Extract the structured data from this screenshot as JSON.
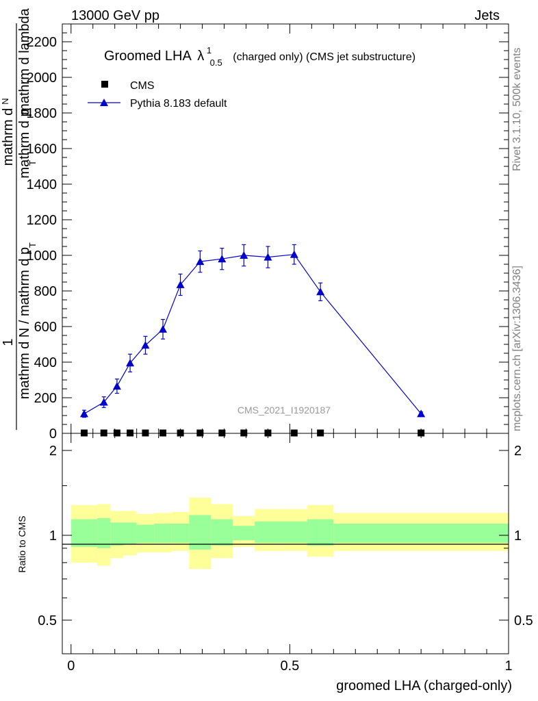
{
  "header": {
    "left_label": "13000 GeV pp",
    "right_label": "Jets"
  },
  "side_labels": {
    "rivet": "Rivet 3.1.10,  500k events",
    "mcplots": "mcplots.cern.ch [arXiv:1306.3436]"
  },
  "watermark": "CMS_2021_I1920187",
  "chart_data": {
    "type": "line",
    "title_main": "Groomed LHA",
    "title_lambda": "λ",
    "title_sup": "1",
    "title_sub": "0.5",
    "title_rest": "(charged only) (CMS jet substructure)",
    "ylabel_numerator": "1",
    "ylabel_numerator_upper": "mathrm d",
    "ylabel_numerator_N": "N",
    "ylabel_denominator": "mathrm d N / mathrm d p",
    "ylabel_denominator_upper": "mathrm d p",
    "ylabel_T": "T",
    "ylabel_tail": "mathrm d lambda",
    "ylabel_tail_full": "mathrm d p_T mathrm d lambda",
    "xlabel": "groomed LHA (charged-only)",
    "ratio_ylabel": "Ratio to CMS",
    "main_ylim": [
      0,
      2300
    ],
    "main_yticks": [
      0,
      200,
      400,
      600,
      800,
      1000,
      1200,
      1400,
      1600,
      1800,
      2000,
      2200
    ],
    "main_ytick_labels": [
      "0",
      "200",
      "400",
      "600",
      "800",
      "1000",
      "1200",
      "1400",
      "1600",
      "1800",
      "2000",
      "2200"
    ],
    "xlim": [
      -0.02,
      1.0
    ],
    "xticks": [
      0,
      0.5,
      1
    ],
    "xtick_labels": [
      "0",
      "0.5",
      "1"
    ],
    "ratio_ylim": [
      0.38,
      2.3
    ],
    "ratio_yticks": [
      0.5,
      1,
      2
    ],
    "ratio_ytick_labels": [
      "0.5",
      "1",
      "2"
    ],
    "legend": [
      {
        "name": "CMS",
        "marker": "square",
        "color": "#000000"
      },
      {
        "name": "Pythia 8.183 default",
        "marker": "triangle",
        "color": "#0000cc"
      }
    ],
    "bin_edges": [
      0,
      0.06,
      0.09,
      0.12,
      0.15,
      0.19,
      0.23,
      0.27,
      0.32,
      0.37,
      0.42,
      0.48,
      0.54,
      0.6,
      1.0
    ],
    "series": [
      {
        "name": "CMS",
        "x": [
          0.03,
          0.075,
          0.105,
          0.135,
          0.17,
          0.21,
          0.25,
          0.295,
          0.345,
          0.395,
          0.45,
          0.51,
          0.57,
          0.8
        ],
        "y": [
          2,
          2,
          2,
          2,
          2,
          2,
          2,
          2,
          2,
          2,
          2,
          2,
          2,
          2
        ]
      },
      {
        "name": "Pythia 8.183 default",
        "x": [
          0.03,
          0.075,
          0.105,
          0.135,
          0.17,
          0.21,
          0.25,
          0.295,
          0.345,
          0.395,
          0.45,
          0.51,
          0.57,
          0.8
        ],
        "y": [
          110,
          175,
          265,
          395,
          495,
          585,
          835,
          965,
          980,
          1000,
          990,
          1005,
          795,
          110
        ],
        "yerr": [
          20,
          30,
          40,
          50,
          50,
          55,
          60,
          60,
          60,
          60,
          60,
          55,
          50,
          10
        ]
      }
    ],
    "ratio_bands": {
      "yellow_lo": [
        0.8,
        0.78,
        0.83,
        0.85,
        0.87,
        0.87,
        0.88,
        0.76,
        0.83,
        0.91,
        0.88,
        0.88,
        0.84,
        0.88
      ],
      "yellow_hi": [
        1.28,
        1.29,
        1.22,
        1.22,
        1.19,
        1.2,
        1.21,
        1.36,
        1.29,
        1.17,
        1.24,
        1.24,
        1.28,
        1.2
      ],
      "green_lo": [
        0.91,
        0.9,
        0.92,
        0.93,
        0.94,
        0.94,
        0.94,
        0.89,
        0.92,
        0.96,
        0.94,
        0.94,
        0.92,
        0.94
      ],
      "green_hi": [
        1.14,
        1.15,
        1.11,
        1.11,
        1.09,
        1.1,
        1.1,
        1.18,
        1.14,
        1.08,
        1.12,
        1.12,
        1.14,
        1.1
      ]
    }
  }
}
